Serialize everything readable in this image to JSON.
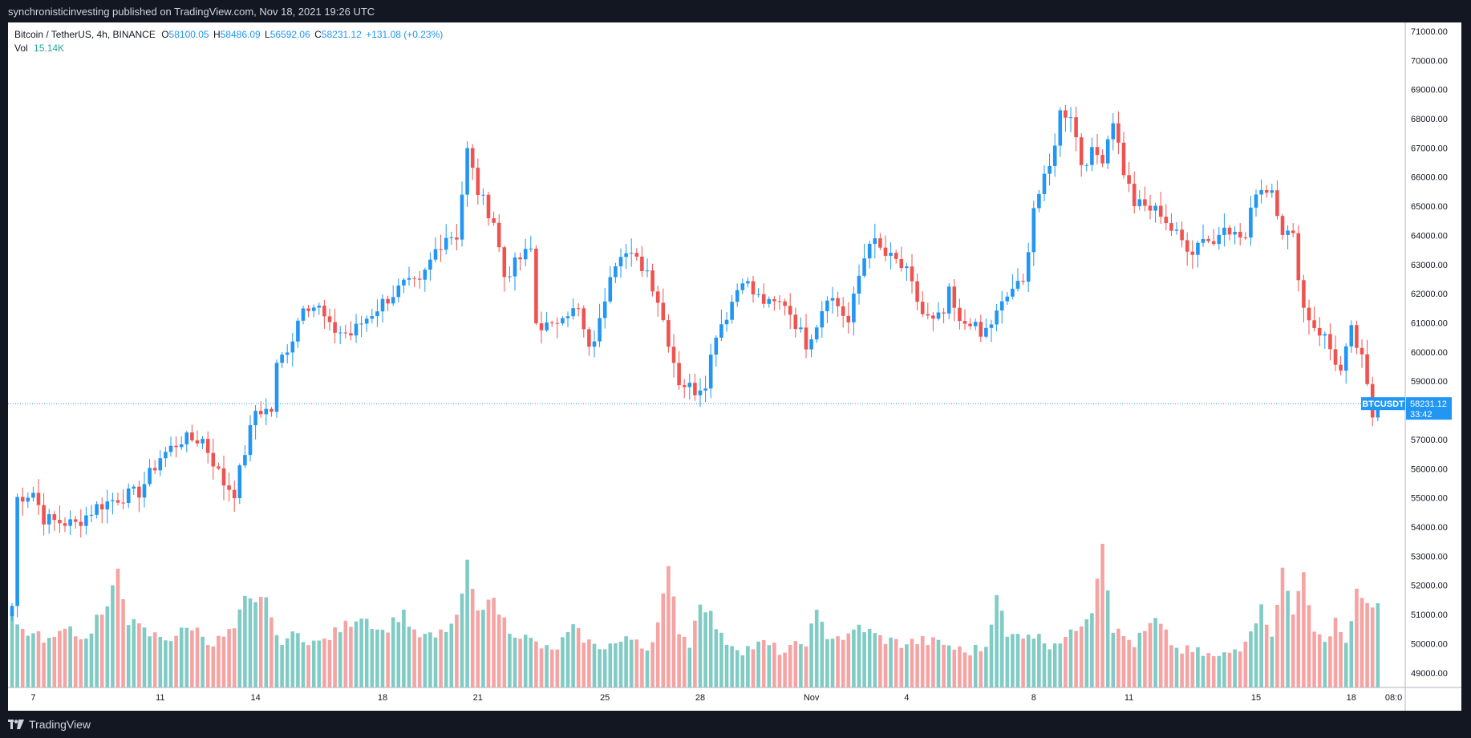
{
  "header": {
    "publisher": "synchronisticinvesting published on TradingView.com, Nov 18, 2021 19:26 UTC"
  },
  "footer": {
    "brand": "TradingView"
  },
  "legend": {
    "symbol": "Bitcoin / TetherUS, 4h, BINANCE",
    "o_label": "O",
    "o": "58100.05",
    "h_label": "H",
    "h": "58486.09",
    "l_label": "L",
    "l": "56592.06",
    "c_label": "C",
    "c": "58231.12",
    "change": "+131.08 (+0.23%)",
    "vol_label": "Vol",
    "vol": "15.14K"
  },
  "price_tag": {
    "symbol": "BTCUSDT",
    "price": "58231.12",
    "countdown": "33:42"
  },
  "colors": {
    "up": "#2196f3",
    "down": "#ef5350",
    "vol_up": "#80cbc4",
    "vol_down": "#f5a3a3",
    "bg": "#ffffff",
    "frame": "#131722"
  },
  "chart_data": {
    "type": "candlestick",
    "title": "Bitcoin / TetherUS, 4h, BINANCE",
    "ylim": [
      48500,
      71300
    ],
    "y_ticks": [
      "49000.00",
      "50000.00",
      "51000.00",
      "52000.00",
      "53000.00",
      "54000.00",
      "55000.00",
      "56000.00",
      "57000.00",
      "58000.00",
      "59000.00",
      "60000.00",
      "61000.00",
      "62000.00",
      "63000.00",
      "64000.00",
      "65000.00",
      "66000.00",
      "67000.00",
      "68000.00",
      "69000.00",
      "70000.00",
      "71000.00"
    ],
    "x_ticks": [
      {
        "label": "7",
        "bar": 4
      },
      {
        "label": "11",
        "bar": 28
      },
      {
        "label": "14",
        "bar": 46
      },
      {
        "label": "18",
        "bar": 70
      },
      {
        "label": "21",
        "bar": 88
      },
      {
        "label": "25",
        "bar": 112
      },
      {
        "label": "28",
        "bar": 130
      },
      {
        "label": "Nov",
        "bar": 151
      },
      {
        "label": "4",
        "bar": 169
      },
      {
        "label": "8",
        "bar": 193
      },
      {
        "label": "11",
        "bar": 211
      },
      {
        "label": "15",
        "bar": 235
      },
      {
        "label": "18",
        "bar": 253
      },
      {
        "label": "08:0",
        "bar": 261
      }
    ],
    "last_price": 58231.12,
    "anchors": [
      [
        0,
        51300
      ],
      [
        1,
        55000
      ],
      [
        4,
        55200
      ],
      [
        6,
        54300
      ],
      [
        8,
        54200
      ],
      [
        12,
        54100
      ],
      [
        16,
        54700
      ],
      [
        20,
        55000
      ],
      [
        24,
        55200
      ],
      [
        28,
        56400
      ],
      [
        32,
        57000
      ],
      [
        36,
        57000
      ],
      [
        40,
        55500
      ],
      [
        42,
        55200
      ],
      [
        46,
        58000
      ],
      [
        49,
        58000
      ],
      [
        50,
        59500
      ],
      [
        53,
        60500
      ],
      [
        55,
        61700
      ],
      [
        58,
        61500
      ],
      [
        60,
        60800
      ],
      [
        64,
        60600
      ],
      [
        66,
        61000
      ],
      [
        70,
        61700
      ],
      [
        74,
        62300
      ],
      [
        77,
        62300
      ],
      [
        80,
        63500
      ],
      [
        82,
        64000
      ],
      [
        84,
        64000
      ],
      [
        86,
        66900
      ],
      [
        88,
        65500
      ],
      [
        91,
        64500
      ],
      [
        93,
        62600
      ],
      [
        96,
        63200
      ],
      [
        98,
        63500
      ],
      [
        99,
        61000
      ],
      [
        102,
        60800
      ],
      [
        104,
        61400
      ],
      [
        107,
        61400
      ],
      [
        109,
        60000
      ],
      [
        111,
        61000
      ],
      [
        113,
        62800
      ],
      [
        115,
        63500
      ],
      [
        118,
        63100
      ],
      [
        120,
        62800
      ],
      [
        122,
        61800
      ],
      [
        124,
        60400
      ],
      [
        126,
        59000
      ],
      [
        129,
        58700
      ],
      [
        131,
        59000
      ],
      [
        133,
        60700
      ],
      [
        135,
        61300
      ],
      [
        138,
        62600
      ],
      [
        140,
        62000
      ],
      [
        143,
        61600
      ],
      [
        146,
        61700
      ],
      [
        148,
        61000
      ],
      [
        150,
        60300
      ],
      [
        152,
        61000
      ],
      [
        154,
        62000
      ],
      [
        156,
        61600
      ],
      [
        158,
        61000
      ],
      [
        160,
        62600
      ],
      [
        162,
        63900
      ],
      [
        165,
        63300
      ],
      [
        167,
        63100
      ],
      [
        169,
        62700
      ],
      [
        172,
        61300
      ],
      [
        174,
        61000
      ],
      [
        176,
        61300
      ],
      [
        177,
        62000
      ],
      [
        179,
        60900
      ],
      [
        181,
        61100
      ],
      [
        183,
        60500
      ],
      [
        185,
        61000
      ],
      [
        187,
        61600
      ],
      [
        189,
        62200
      ],
      [
        191,
        62300
      ],
      [
        193,
        65000
      ],
      [
        196,
        66300
      ],
      [
        198,
        68200
      ],
      [
        200,
        68200
      ],
      [
        202,
        66500
      ],
      [
        204,
        66800
      ],
      [
        206,
        66700
      ],
      [
        208,
        68000
      ],
      [
        210,
        66200
      ],
      [
        212,
        65100
      ],
      [
        215,
        64900
      ],
      [
        217,
        64800
      ],
      [
        219,
        64200
      ],
      [
        221,
        63800
      ],
      [
        223,
        63500
      ],
      [
        225,
        64000
      ],
      [
        227,
        63700
      ],
      [
        229,
        64500
      ],
      [
        231,
        64000
      ],
      [
        233,
        63900
      ],
      [
        235,
        65600
      ],
      [
        238,
        65600
      ],
      [
        240,
        64200
      ],
      [
        242,
        63900
      ],
      [
        244,
        61500
      ],
      [
        246,
        60900
      ],
      [
        248,
        60500
      ],
      [
        251,
        59300
      ],
      [
        253,
        60700
      ],
      [
        255,
        59700
      ],
      [
        257,
        57800
      ],
      [
        258,
        58231
      ]
    ],
    "volume_anchors": [
      [
        0,
        51000
      ],
      [
        1,
        50600
      ],
      [
        4,
        50300
      ],
      [
        8,
        50100
      ],
      [
        10,
        50700
      ],
      [
        14,
        50100
      ],
      [
        16,
        50900
      ],
      [
        18,
        51100
      ],
      [
        20,
        52600
      ],
      [
        22,
        50800
      ],
      [
        26,
        50300
      ],
      [
        30,
        50200
      ],
      [
        34,
        50600
      ],
      [
        38,
        50000
      ],
      [
        42,
        50500
      ],
      [
        44,
        51500
      ],
      [
        46,
        51300
      ],
      [
        48,
        51700
      ],
      [
        50,
        50100
      ],
      [
        54,
        50300
      ],
      [
        58,
        50000
      ],
      [
        62,
        50500
      ],
      [
        66,
        51000
      ],
      [
        70,
        50400
      ],
      [
        74,
        51100
      ],
      [
        76,
        50300
      ],
      [
        80,
        50200
      ],
      [
        84,
        50800
      ],
      [
        86,
        52700
      ],
      [
        88,
        51000
      ],
      [
        90,
        51700
      ],
      [
        94,
        50500
      ],
      [
        98,
        50100
      ],
      [
        102,
        49700
      ],
      [
        106,
        50500
      ],
      [
        110,
        49900
      ],
      [
        114,
        50000
      ],
      [
        118,
        50200
      ],
      [
        120,
        49800
      ],
      [
        122,
        50700
      ],
      [
        124,
        52500
      ],
      [
        126,
        50500
      ],
      [
        128,
        50000
      ],
      [
        130,
        51500
      ],
      [
        132,
        51000
      ],
      [
        134,
        50200
      ],
      [
        138,
        49800
      ],
      [
        142,
        50000
      ],
      [
        146,
        49700
      ],
      [
        150,
        50100
      ],
      [
        152,
        51000
      ],
      [
        154,
        50300
      ],
      [
        158,
        50200
      ],
      [
        160,
        50600
      ],
      [
        164,
        50200
      ],
      [
        168,
        50000
      ],
      [
        172,
        50100
      ],
      [
        176,
        50000
      ],
      [
        180,
        49700
      ],
      [
        184,
        49900
      ],
      [
        186,
        51800
      ],
      [
        188,
        50200
      ],
      [
        192,
        50400
      ],
      [
        196,
        50000
      ],
      [
        200,
        50300
      ],
      [
        204,
        51200
      ],
      [
        206,
        53500
      ],
      [
        208,
        50500
      ],
      [
        212,
        50000
      ],
      [
        216,
        50800
      ],
      [
        220,
        49800
      ],
      [
        224,
        49700
      ],
      [
        228,
        49500
      ],
      [
        232,
        49900
      ],
      [
        236,
        51200
      ],
      [
        238,
        50400
      ],
      [
        240,
        52500
      ],
      [
        242,
        51000
      ],
      [
        244,
        52600
      ],
      [
        246,
        50300
      ],
      [
        248,
        50000
      ],
      [
        250,
        50900
      ],
      [
        252,
        50000
      ],
      [
        254,
        51800
      ],
      [
        255,
        51400
      ]
    ]
  }
}
